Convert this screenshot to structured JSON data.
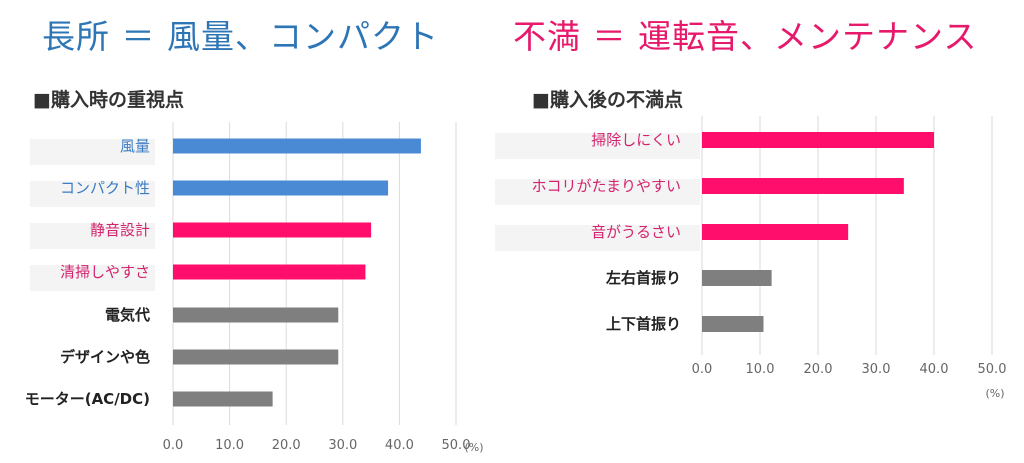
{
  "headline_left": {
    "text": "長所 ＝ 風量、コンパクト",
    "color": "#2e75b6"
  },
  "headline_right": {
    "text": "不満 ＝ 運転音、メンテナンス",
    "color": "#e6196b"
  },
  "colors": {
    "blue": "#4a8ad4",
    "pink": "#ff0f6b",
    "gray": "#7f7f7f",
    "label_blue": "#3a7cc4",
    "label_pink": "#d4236e",
    "label_dark": "#222222",
    "axis_text": "#666666"
  },
  "chart_data": [
    {
      "type": "bar",
      "orientation": "horizontal",
      "title": "■購入時の重視点",
      "categories": [
        "風量",
        "コンパクト性",
        "静音設計",
        "清掃しやすさ",
        "電気代",
        "デザインや色",
        "モーター(AC/DC)"
      ],
      "values": [
        43.8,
        38.0,
        35.0,
        34.0,
        29.2,
        29.2,
        17.6
      ],
      "bar_colors": [
        "blue",
        "blue",
        "pink",
        "pink",
        "gray",
        "gray",
        "gray"
      ],
      "xlim": [
        0,
        50
      ],
      "ticks": [
        "0.0",
        "10.0",
        "20.0",
        "30.0",
        "40.0",
        "50.0"
      ],
      "unit": "(%)",
      "grid": true
    },
    {
      "type": "bar",
      "orientation": "horizontal",
      "title": "■購入後の不満点",
      "categories": [
        "掃除しにくい",
        "ホコリがたまりやすい",
        "音がうるさい",
        "左右首振り",
        "上下首振り"
      ],
      "values": [
        40.0,
        34.8,
        25.2,
        12.0,
        10.6
      ],
      "bar_colors": [
        "pink",
        "pink",
        "pink",
        "gray",
        "gray"
      ],
      "xlim": [
        0,
        50
      ],
      "ticks": [
        "0.0",
        "10.0",
        "20.0",
        "30.0",
        "40.0",
        "50.0"
      ],
      "unit": "(%)",
      "grid": true
    }
  ]
}
